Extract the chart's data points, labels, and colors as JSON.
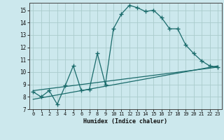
{
  "xlabel": "Humidex (Indice chaleur)",
  "background_color": "#cce8ed",
  "grid_color": "#aacccc",
  "line_color": "#1a6b6b",
  "xlim": [
    -0.5,
    23.5
  ],
  "ylim": [
    7,
    15.6
  ],
  "yticks": [
    7,
    8,
    9,
    10,
    11,
    12,
    13,
    14,
    15
  ],
  "xticks": [
    0,
    1,
    2,
    3,
    4,
    5,
    6,
    7,
    8,
    9,
    10,
    11,
    12,
    13,
    14,
    15,
    16,
    17,
    18,
    19,
    20,
    21,
    22,
    23
  ],
  "series1_x": [
    0,
    1,
    2,
    3,
    4,
    5,
    6,
    7,
    8,
    9,
    10,
    11,
    12,
    13,
    14,
    15,
    16,
    17,
    18,
    19,
    20,
    21,
    22,
    23
  ],
  "series1_y": [
    8.4,
    8.0,
    8.5,
    7.4,
    8.9,
    10.5,
    8.5,
    8.6,
    11.5,
    9.0,
    13.5,
    14.7,
    15.4,
    15.2,
    14.9,
    15.0,
    14.4,
    13.5,
    13.5,
    12.2,
    11.5,
    10.9,
    10.5,
    10.4
  ],
  "series2_x": [
    0,
    23
  ],
  "series2_y": [
    8.5,
    10.4
  ],
  "series3_x": [
    0,
    23
  ],
  "series3_y": [
    7.8,
    10.5
  ]
}
